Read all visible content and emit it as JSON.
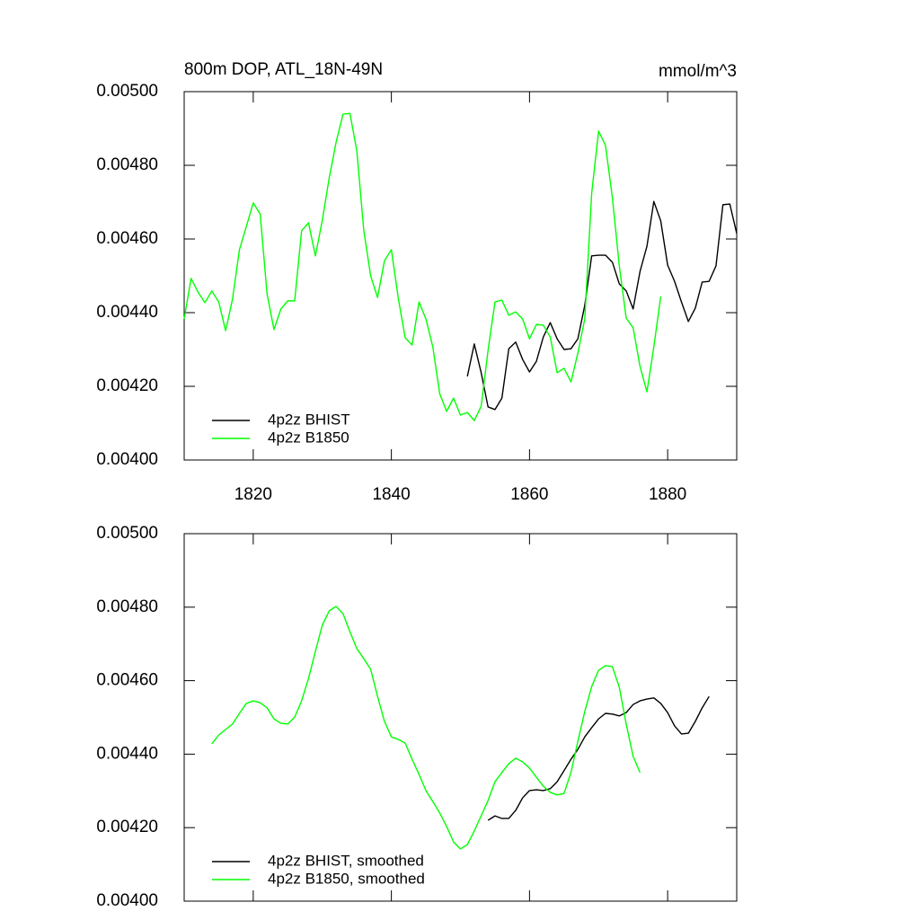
{
  "chart_data": [
    {
      "type": "line",
      "title": "800m DOP, ATL_18N-49N",
      "units": "mmol/m^3",
      "x": [
        1810,
        1811,
        1812,
        1813,
        1814,
        1815,
        1816,
        1817,
        1818,
        1819,
        1820,
        1821,
        1822,
        1823,
        1824,
        1825,
        1826,
        1827,
        1828,
        1829,
        1830,
        1831,
        1832,
        1833,
        1834,
        1835,
        1836,
        1837,
        1838,
        1839,
        1840,
        1841,
        1842,
        1843,
        1844,
        1845,
        1846,
        1847,
        1848,
        1849,
        1850,
        1851,
        1852,
        1853,
        1854,
        1855,
        1856,
        1857,
        1858,
        1859,
        1860,
        1861,
        1862,
        1863,
        1864,
        1865,
        1866,
        1867,
        1868,
        1869,
        1870,
        1871,
        1872,
        1873,
        1874,
        1875,
        1876,
        1877,
        1878,
        1879,
        1880,
        1881,
        1882,
        1883,
        1884,
        1885,
        1886,
        1887,
        1888,
        1889,
        1890
      ],
      "xlim": [
        1810,
        1890
      ],
      "xticks": [
        1820,
        1840,
        1860,
        1880
      ],
      "xtick_labels": true,
      "ylim": [
        0.004,
        0.005
      ],
      "yticks": [
        {
          "value": 0.004,
          "label": "0.00400"
        },
        {
          "value": 0.0042,
          "label": "0.00420"
        },
        {
          "value": 0.0044,
          "label": "0.00440"
        },
        {
          "value": 0.0046,
          "label": "0.00460"
        },
        {
          "value": 0.0048,
          "label": "0.00480"
        },
        {
          "value": 0.005,
          "label": "0.00500"
        }
      ],
      "series": [
        {
          "name": "4p2z BHIST",
          "color": "#000000",
          "values": [
            null,
            null,
            null,
            null,
            null,
            null,
            null,
            null,
            null,
            null,
            null,
            null,
            null,
            null,
            null,
            null,
            null,
            null,
            null,
            null,
            null,
            null,
            null,
            null,
            null,
            null,
            null,
            null,
            null,
            null,
            null,
            null,
            null,
            null,
            null,
            null,
            null,
            null,
            null,
            null,
            null,
            0.004227,
            0.004315,
            0.004237,
            0.004144,
            0.004137,
            0.004168,
            0.004302,
            0.00432,
            0.004273,
            0.004239,
            0.004268,
            0.004334,
            0.004373,
            0.004329,
            0.0043,
            0.004302,
            0.004329,
            0.00442,
            0.004554,
            0.004556,
            0.004556,
            0.004537,
            0.004478,
            0.004459,
            0.00441,
            0.004512,
            0.00458,
            0.004702,
            0.004649,
            0.004529,
            0.004485,
            0.004429,
            0.004376,
            0.004412,
            0.004483,
            0.004485,
            0.004527,
            0.004693,
            0.004695,
            0.004615
          ]
        },
        {
          "name": "4p2z B1850",
          "color": "#00ff00",
          "values": [
            0.004383,
            0.004493,
            0.004456,
            0.004427,
            0.004459,
            0.004429,
            0.004351,
            0.004437,
            0.004571,
            0.004634,
            0.004698,
            0.004668,
            0.004451,
            0.004354,
            0.00441,
            0.004432,
            0.004432,
            0.004622,
            0.004644,
            0.004554,
            0.004651,
            0.004766,
            0.004863,
            0.004939,
            0.004941,
            0.004839,
            0.004624,
            0.0045,
            0.004441,
            0.004541,
            0.004571,
            0.004439,
            0.004332,
            0.004312,
            0.004429,
            0.004383,
            0.004307,
            0.00418,
            0.004132,
            0.004168,
            0.004122,
            0.004129,
            0.004107,
            0.004146,
            0.004298,
            0.004429,
            0.004434,
            0.004393,
            0.004402,
            0.004383,
            0.004329,
            0.004368,
            0.004366,
            0.004334,
            0.004237,
            0.004249,
            0.004212,
            0.00429,
            0.004383,
            0.004724,
            0.004893,
            0.004854,
            0.004712,
            0.004527,
            0.004385,
            0.004359,
            0.004254,
            0.004185,
            0.004307,
            0.004444,
            null,
            null,
            null,
            null,
            null,
            null,
            null,
            null,
            null,
            null,
            null
          ]
        }
      ]
    },
    {
      "type": "line",
      "x": [
        1810,
        1811,
        1812,
        1813,
        1814,
        1815,
        1816,
        1817,
        1818,
        1819,
        1820,
        1821,
        1822,
        1823,
        1824,
        1825,
        1826,
        1827,
        1828,
        1829,
        1830,
        1831,
        1832,
        1833,
        1834,
        1835,
        1836,
        1837,
        1838,
        1839,
        1840,
        1841,
        1842,
        1843,
        1844,
        1845,
        1846,
        1847,
        1848,
        1849,
        1850,
        1851,
        1852,
        1853,
        1854,
        1855,
        1856,
        1857,
        1858,
        1859,
        1860,
        1861,
        1862,
        1863,
        1864,
        1865,
        1866,
        1867,
        1868,
        1869,
        1870,
        1871,
        1872,
        1873,
        1874,
        1875,
        1876,
        1877,
        1878,
        1879,
        1880,
        1881,
        1882,
        1883,
        1884,
        1885,
        1886,
        1887,
        1888,
        1889,
        1890
      ],
      "xlim": [
        1810,
        1890
      ],
      "xticks": [
        1820,
        1840,
        1860,
        1880
      ],
      "xtick_labels": false,
      "ylim": [
        0.004,
        0.005
      ],
      "yticks": [
        {
          "value": 0.004,
          "label": "0.00400"
        },
        {
          "value": 0.0042,
          "label": "0.00420"
        },
        {
          "value": 0.0044,
          "label": "0.00440"
        },
        {
          "value": 0.0046,
          "label": "0.00460"
        },
        {
          "value": 0.0048,
          "label": "0.00480"
        },
        {
          "value": 0.005,
          "label": "0.00500"
        }
      ],
      "series": [
        {
          "name": "4p2z BHIST, smoothed",
          "color": "#000000",
          "values": [
            null,
            null,
            null,
            null,
            null,
            null,
            null,
            null,
            null,
            null,
            null,
            null,
            null,
            null,
            null,
            null,
            null,
            null,
            null,
            null,
            null,
            null,
            null,
            null,
            null,
            null,
            null,
            null,
            null,
            null,
            null,
            null,
            null,
            null,
            null,
            null,
            null,
            null,
            null,
            null,
            null,
            null,
            null,
            null,
            0.00422,
            0.004232,
            0.004225,
            0.004225,
            0.004247,
            0.004281,
            0.004301,
            0.004303,
            0.004301,
            0.004306,
            0.004325,
            0.004355,
            0.004386,
            0.004413,
            0.004447,
            0.004472,
            0.004496,
            0.004511,
            0.004509,
            0.004504,
            0.004513,
            0.004535,
            0.004545,
            0.00455,
            0.004553,
            0.004538,
            0.004513,
            0.004477,
            0.004455,
            0.004457,
            0.004489,
            0.004526,
            0.004557,
            null,
            null,
            null,
            null
          ]
        },
        {
          "name": "4p2z B1850, smoothed",
          "color": "#00ff00",
          "values": [
            null,
            null,
            null,
            null,
            0.004428,
            0.004452,
            0.004467,
            0.004482,
            0.004511,
            0.004538,
            0.004545,
            0.00454,
            0.004526,
            0.004496,
            0.004484,
            0.004482,
            0.004501,
            0.004545,
            0.004606,
            0.00468,
            0.004751,
            0.00479,
            0.004802,
            0.004782,
            0.004733,
            0.004687,
            0.00466,
            0.004631,
            0.004557,
            0.004489,
            0.004447,
            0.00444,
            0.00443,
            0.004386,
            0.004345,
            0.004301,
            0.004271,
            0.00424,
            0.004203,
            0.004161,
            0.004142,
            0.004154,
            0.004191,
            0.004232,
            0.004274,
            0.004325,
            0.00435,
            0.004374,
            0.004389,
            0.004379,
            0.004362,
            0.004337,
            0.004313,
            0.004296,
            0.004289,
            0.004293,
            0.00435,
            0.004435,
            0.004516,
            0.004584,
            0.004628,
            0.004641,
            0.004638,
            0.004582,
            0.004482,
            0.004394,
            0.00435,
            null,
            null,
            null,
            null,
            null,
            null,
            null,
            null,
            null,
            null,
            null,
            null,
            null,
            null
          ]
        }
      ]
    }
  ]
}
